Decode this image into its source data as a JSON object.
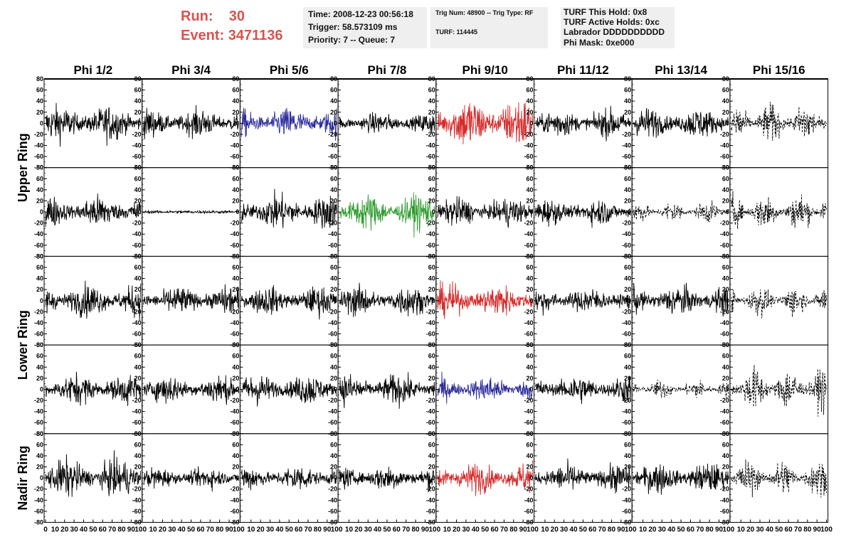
{
  "header": {
    "run_label": "Run:",
    "run_value": "30",
    "event_label": "Event:",
    "event_value": "3471136",
    "colors": {
      "run_text": "#d9534f"
    }
  },
  "info_boxes": {
    "time": {
      "line1": "Time: 2008-12-23 00:56:18",
      "line2": "Trigger: 58.573109 ms",
      "line3": "Priority: 7 -- Queue: 7"
    },
    "trig": {
      "line1": "Trig Num: 48900 -- Trig Type: RF",
      "line2": "TURF: 114445"
    },
    "turf": {
      "line1": "TURF This Hold: 0x8",
      "line2": "TURF Active Holds: 0xc",
      "line3": "Labrador DDDDDDDDDD",
      "line4": "Phi Mask: 0xe000"
    }
  },
  "chart_data": {
    "type": "line",
    "columns": [
      "Phi 1/2",
      "Phi 3/4",
      "Phi 5/6",
      "Phi 7/8",
      "Phi 9/10",
      "Phi 11/12",
      "Phi 13/14",
      "Phi 15/16"
    ],
    "row_groups": [
      {
        "label": "Upper Ring",
        "rows": [
          0,
          1
        ]
      },
      {
        "label": "Lower Ring",
        "rows": [
          2,
          3
        ]
      },
      {
        "label": "Nadir Ring",
        "rows": [
          4
        ]
      }
    ],
    "ylim": [
      -80,
      80
    ],
    "yticks": [
      -80,
      -60,
      -40,
      -20,
      0,
      20,
      40,
      60,
      80
    ],
    "xlim": [
      0,
      100
    ],
    "xticks": [
      0,
      10,
      20,
      30,
      40,
      50,
      60,
      70,
      80,
      90,
      100
    ],
    "trace_colors": {
      "normal": "#000000",
      "blue": "#2b2b9b",
      "red": "#d62a2a",
      "green": "#2a9a2a",
      "dashed": "#000000"
    },
    "panels": [
      [
        "normal",
        "normal",
        "blue",
        "normal",
        "red",
        "normal",
        "normal",
        "dashed"
      ],
      [
        "normal",
        "flat",
        "normal",
        "green",
        "normal",
        "normal",
        "dashed",
        "dashed"
      ],
      [
        "normal",
        "normal",
        "normal",
        "normal",
        "red",
        "normal",
        "normal",
        "dashed"
      ],
      [
        "normal",
        "normal",
        "normal",
        "normal",
        "blue",
        "normal",
        "dashed",
        "dashed"
      ],
      [
        "normal",
        "normal",
        "normal",
        "normal",
        "red",
        "normal",
        "normal",
        "dashed"
      ]
    ],
    "amplitudes": [
      [
        15,
        12,
        13,
        9,
        22,
        12,
        13,
        18
      ],
      [
        14,
        2,
        15,
        15,
        12,
        11,
        10,
        17
      ],
      [
        14,
        12,
        12,
        13,
        14,
        11,
        13,
        14
      ],
      [
        13,
        12,
        13,
        13,
        11,
        12,
        9,
        20
      ],
      [
        16,
        9,
        11,
        11,
        13,
        12,
        13,
        17
      ]
    ]
  }
}
